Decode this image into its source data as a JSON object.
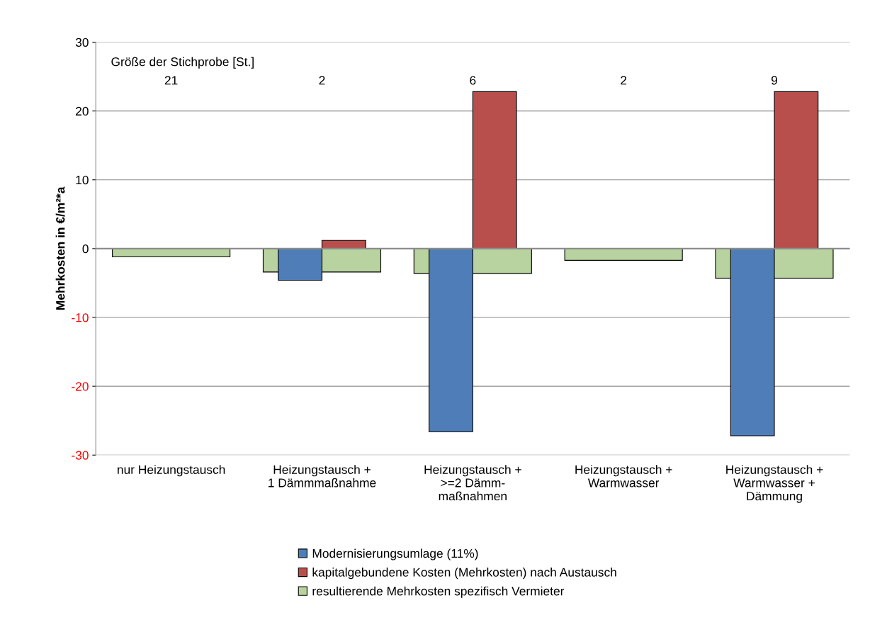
{
  "chart_data": {
    "type": "bar",
    "ylabel": "Mehrkosten in €/m²*a",
    "categories": [
      "nur Heizungstausch",
      "Heizungstausch +\n1 Dämmmaßnahme",
      "Heizungstausch +\n>=2 Dämm-\nmaßnahmen",
      "Heizungstausch +\nWarmwasser",
      "Heizungstausch +\nWarmwasser +\nDämmung"
    ],
    "series": [
      {
        "name": "Modernisierungsumlage (11%)",
        "color": "#4f7db8",
        "values": [
          null,
          -4.6,
          -26.6,
          null,
          -27.2
        ]
      },
      {
        "name": "kapitalgebundene Kosten (Mehrkosten) nach Austausch",
        "color": "#b94f4c",
        "values": [
          null,
          1.2,
          22.8,
          null,
          22.8
        ]
      },
      {
        "name": "resultierende Mehrkosten spezifisch Vermieter",
        "color": "#b9d3a0",
        "values": [
          -1.2,
          -3.4,
          -3.6,
          -1.7,
          -4.3
        ]
      }
    ],
    "ylim": [
      -30,
      30
    ],
    "yticks": [
      -30,
      -20,
      -10,
      0,
      10,
      20,
      30
    ],
    "grid": "y",
    "legend": "bottom",
    "annotations": [
      "Größe der Stichprobe [St.]",
      "21",
      "2",
      "6",
      "2",
      "9"
    ]
  }
}
